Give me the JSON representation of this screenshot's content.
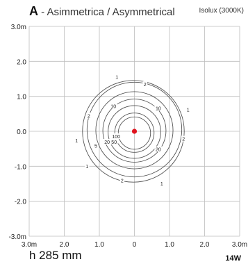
{
  "header": {
    "letter": "A",
    "title_rest": " - Asimmetrica / Asymmetrical",
    "subtitle": "Isolux (3000K)"
  },
  "footer": {
    "height": "h 285 mm",
    "power": "14W"
  },
  "chart_data": {
    "type": "isolux",
    "xlim": [
      -3.0,
      3.0
    ],
    "ylim": [
      -3.0,
      3.0
    ],
    "grid": true,
    "x_ticks": [
      "3.0m",
      "2.0",
      "1.0",
      "0",
      "1.0",
      "2.0",
      "3.0m"
    ],
    "y_ticks": [
      "3.0m",
      "2.0",
      "1.0",
      "0.0",
      "-1.0",
      "-2.0",
      "-3.0m"
    ],
    "source_point": {
      "x": 0,
      "y": 0,
      "color": "#e0141e"
    },
    "contour_color": "#555555",
    "contours": [
      {
        "lux": 1,
        "cx": -0.03,
        "cy": 0.0,
        "r": 1.45
      },
      {
        "lux": 2,
        "cx": 0.0,
        "cy": 0.05,
        "r": 1.35
      },
      {
        "lux": 5,
        "cx": 0.0,
        "cy": 0.03,
        "r": 1.1
      },
      {
        "lux": 10,
        "cx": 0.0,
        "cy": 0.02,
        "r": 0.9
      },
      {
        "lux": 20,
        "cx": 0.0,
        "cy": -0.02,
        "r": 0.75
      },
      {
        "lux": 50,
        "cx": 0.0,
        "cy": -0.04,
        "r": 0.56
      },
      {
        "lux": 100,
        "cx": 0.0,
        "cy": -0.05,
        "r": 0.46
      }
    ],
    "labels": [
      {
        "text": "1",
        "x": -0.5,
        "y": 1.55
      },
      {
        "text": "2",
        "x": 0.3,
        "y": 1.34
      },
      {
        "text": "10",
        "x": -0.6,
        "y": 0.72
      },
      {
        "text": "10",
        "x": 0.68,
        "y": 0.66
      },
      {
        "text": "1",
        "x": 1.53,
        "y": 0.62
      },
      {
        "text": "2",
        "x": -1.3,
        "y": 0.44
      },
      {
        "text": "1",
        "x": -1.65,
        "y": -0.27
      },
      {
        "text": "2",
        "x": 1.4,
        "y": -0.22
      },
      {
        "text": "100",
        "x": -0.52,
        "y": -0.15
      },
      {
        "text": "50",
        "x": -0.58,
        "y": -0.31
      },
      {
        "text": "20",
        "x": -0.78,
        "y": -0.31
      },
      {
        "text": "5",
        "x": -1.1,
        "y": -0.42
      },
      {
        "text": "20",
        "x": 0.68,
        "y": -0.52
      },
      {
        "text": "1",
        "x": -1.35,
        "y": -1.0
      },
      {
        "text": "2",
        "x": -0.35,
        "y": -1.41
      },
      {
        "text": "1",
        "x": 0.78,
        "y": -1.5
      }
    ]
  }
}
